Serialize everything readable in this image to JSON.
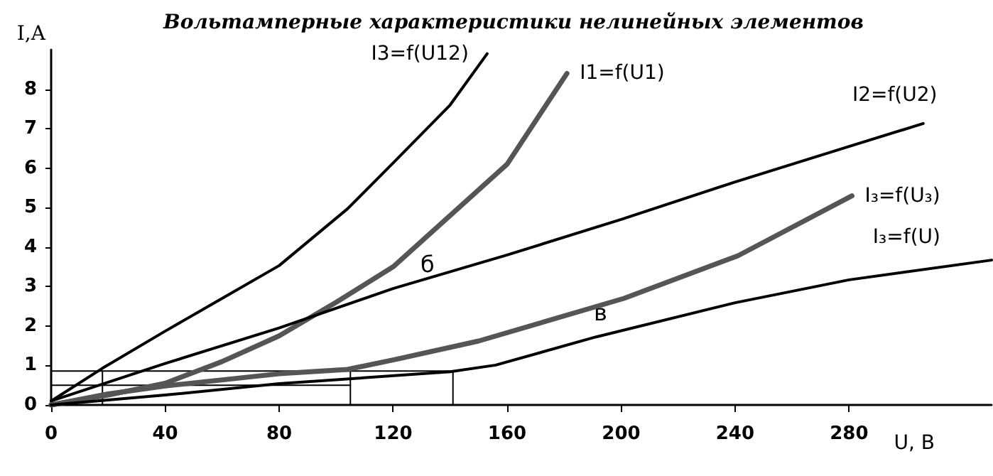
{
  "chart_data": {
    "type": "line",
    "title": "Вольтамперные характеристики нелинейных элементов",
    "xlabel": "U, B",
    "ylabel": "I,A",
    "xlim": [
      0,
      330
    ],
    "xticks": [
      0,
      40,
      80,
      120,
      160,
      200,
      240,
      280
    ],
    "ylim": [
      0,
      9
    ],
    "yticks": [
      0,
      1,
      2,
      3,
      4,
      5,
      6,
      7,
      8
    ],
    "grid": false,
    "legend": false,
    "marker": "none",
    "line_style": "solid",
    "annotations": [
      "б",
      "в"
    ],
    "series": [
      {
        "name": "I3=f(U12)",
        "color": "#000000",
        "x": [
          0,
          18,
          40,
          60,
          80,
          104,
          120,
          140,
          153
        ],
        "values": [
          0.1,
          0.93,
          1.87,
          2.7,
          3.53,
          4.97,
          6.13,
          7.6,
          8.9
        ]
      },
      {
        "name": "I1=f(U1)",
        "color": "#555555",
        "x": [
          0,
          20,
          40,
          60,
          80,
          100,
          120,
          140,
          160,
          181
        ],
        "values": [
          0,
          0.25,
          0.55,
          1.1,
          1.75,
          2.6,
          3.5,
          4.8,
          6.1,
          8.4
        ]
      },
      {
        "name": "I2=f(U2)",
        "color": "#000000",
        "x": [
          0,
          40,
          80,
          120,
          160,
          200,
          240,
          280,
          306
        ],
        "values": [
          0.1,
          1.05,
          1.95,
          2.95,
          3.8,
          4.7,
          5.65,
          6.55,
          7.13
        ]
      },
      {
        "name": "I₃=f(U₃)",
        "color": "#555555",
        "x": [
          0,
          20,
          40,
          80,
          104,
          120,
          150,
          201,
          241,
          281
        ],
        "values": [
          0,
          0.28,
          0.48,
          0.79,
          0.9,
          1.14,
          1.62,
          2.7,
          3.78,
          5.3
        ]
      },
      {
        "name": "I₃=f(U)",
        "color": "#000000",
        "x": [
          0,
          40,
          80,
          140,
          156,
          191,
          240,
          280,
          330
        ],
        "values": [
          0,
          0.25,
          0.54,
          0.84,
          1.01,
          1.72,
          2.59,
          3.17,
          3.67
        ]
      },
      {
        "color": "#000000",
        "x": [
          0,
          141
        ],
        "values": [
          0.86,
          0.86
        ]
      },
      {
        "color": "#000000",
        "x": [
          0,
          105
        ],
        "values": [
          0.5,
          0.5
        ]
      },
      {
        "color": "#000000",
        "x": [
          18,
          18
        ],
        "values": [
          0,
          0.86
        ]
      },
      {
        "color": "#000000",
        "x": [
          105,
          105
        ],
        "values": [
          0,
          0.86
        ]
      },
      {
        "color": "#000000",
        "x": [
          141,
          141
        ],
        "values": [
          0,
          0.86
        ]
      }
    ]
  }
}
